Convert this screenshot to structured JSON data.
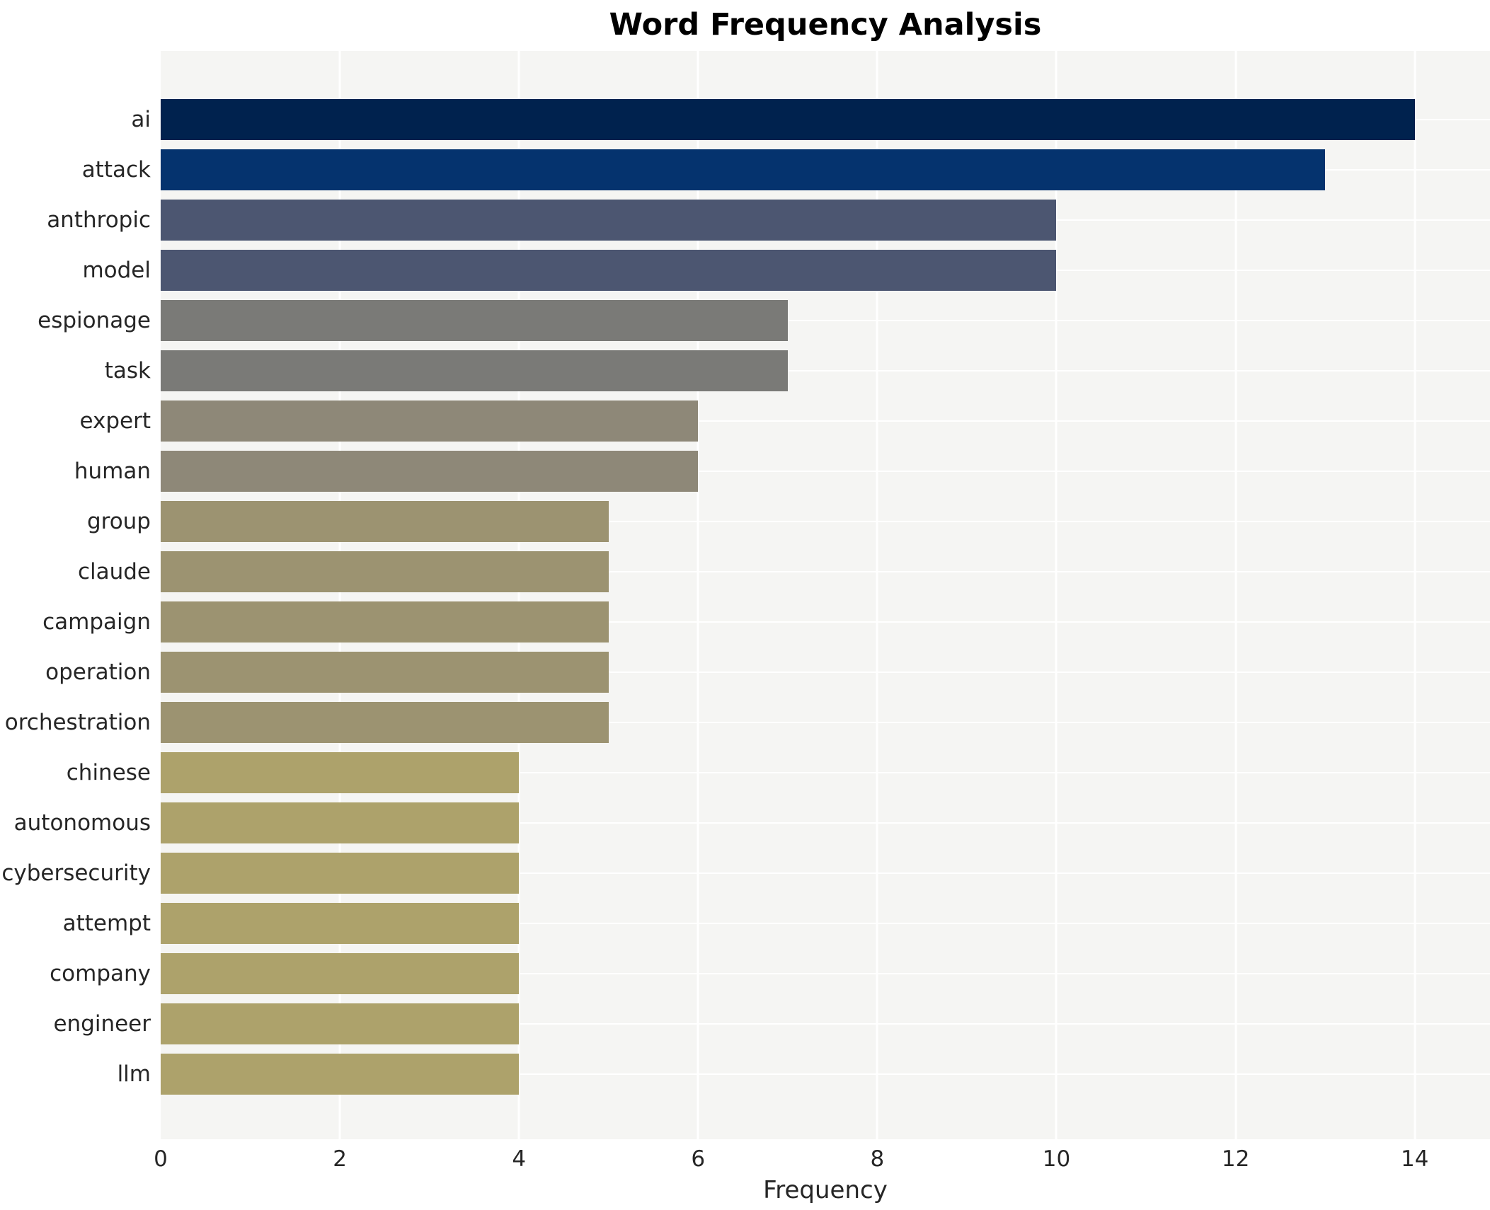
{
  "page": {
    "background": "#ffffff"
  },
  "chart_data": {
    "type": "bar",
    "orientation": "horizontal",
    "title": "Word Frequency Analysis",
    "xlabel": "Frequency",
    "ylabel": "",
    "categories": [
      "ai",
      "attack",
      "anthropic",
      "model",
      "espionage",
      "task",
      "expert",
      "human",
      "group",
      "claude",
      "campaign",
      "operation",
      "orchestration",
      "chinese",
      "autonomous",
      "cybersecurity",
      "attempt",
      "company",
      "engineer",
      "llm"
    ],
    "values": [
      14,
      13,
      10,
      10,
      7,
      7,
      6,
      6,
      5,
      5,
      5,
      5,
      5,
      4,
      4,
      4,
      4,
      4,
      4,
      4
    ],
    "bar_colors": [
      "#00224e",
      "#05336e",
      "#4c5671",
      "#4c5671",
      "#7a7a77",
      "#7a7a77",
      "#8e8878",
      "#8e8878",
      "#9c9371",
      "#9c9371",
      "#9c9371",
      "#9c9371",
      "#9c9371",
      "#ada26b",
      "#ada26b",
      "#ada26b",
      "#ada26b",
      "#ada26b",
      "#ada26b",
      "#ada26b"
    ],
    "xlim": [
      0,
      14.84
    ],
    "xticks": [
      0,
      2,
      4,
      6,
      8,
      10,
      12,
      14
    ],
    "grid": true,
    "legend": false,
    "colormap": "cividis",
    "plot_background": "#f5f5f3",
    "grid_color": "#ffffff",
    "text_color": "#262626"
  }
}
